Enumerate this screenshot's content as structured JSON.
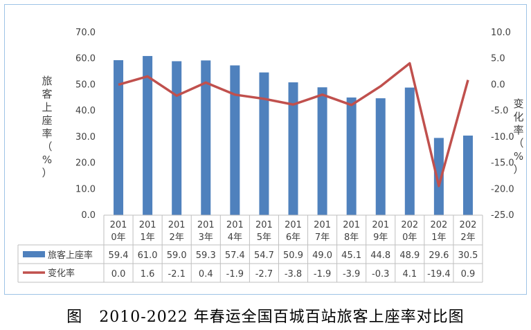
{
  "caption": "图   2010-2022 年春运全国百城百站旅客上座率对比图",
  "chart_data": {
    "type": "bar",
    "categories": [
      "2010年",
      "2011年",
      "2012年",
      "2013年",
      "2014年",
      "2015年",
      "2016年",
      "2017年",
      "2018年",
      "2019年",
      "2020年",
      "2021年",
      "2022年"
    ],
    "category_display": [
      [
        "201",
        "0年"
      ],
      [
        "201",
        "1年"
      ],
      [
        "201",
        "2年"
      ],
      [
        "201",
        "3年"
      ],
      [
        "201",
        "4年"
      ],
      [
        "201",
        "5年"
      ],
      [
        "201",
        "6年"
      ],
      [
        "201",
        "7年"
      ],
      [
        "201",
        "8年"
      ],
      [
        "201",
        "9年"
      ],
      [
        "202",
        "0年"
      ],
      [
        "202",
        "1年"
      ],
      [
        "202",
        "2年"
      ]
    ],
    "series": [
      {
        "name": "旅客上座率",
        "type": "bar",
        "axis": "left",
        "color": "#4f81bd",
        "values": [
          59.4,
          61.0,
          59.0,
          59.3,
          57.4,
          54.7,
          50.9,
          49.0,
          45.1,
          44.8,
          48.9,
          29.6,
          30.5
        ],
        "labels": [
          "59.4",
          "61.0",
          "59.0",
          "59.3",
          "57.4",
          "54.7",
          "50.9",
          "49.0",
          "45.1",
          "44.8",
          "48.9",
          "29.6",
          "30.5"
        ]
      },
      {
        "name": "变化率",
        "type": "line",
        "axis": "right",
        "color": "#c0504d",
        "values": [
          0.0,
          1.6,
          -2.1,
          0.4,
          -1.9,
          -2.7,
          -3.8,
          -1.9,
          -3.9,
          -0.3,
          4.1,
          -19.4,
          0.9
        ],
        "labels": [
          "0.0",
          "1.6",
          "-2.1",
          "0.4",
          "-1.9",
          "-2.7",
          "-3.8",
          "-1.9",
          "-3.9",
          "-0.3",
          "4.1",
          "-19.4",
          "0.9"
        ]
      }
    ],
    "ylabel_left": "旅客上座率（%）",
    "ylabel_right": "变化率（%）",
    "ylim_left": [
      0,
      70
    ],
    "ylim_right": [
      -25,
      10
    ],
    "yticks_left": [
      "0.0",
      "10.0",
      "20.0",
      "30.0",
      "40.0",
      "50.0",
      "60.0",
      "70.0"
    ],
    "yticks_right": [
      "-25.0",
      "-20.0",
      "-15.0",
      "-10.0",
      "-5.0",
      "0.0",
      "5.0",
      "10.0"
    ],
    "grid": false,
    "legend": "data-table"
  }
}
